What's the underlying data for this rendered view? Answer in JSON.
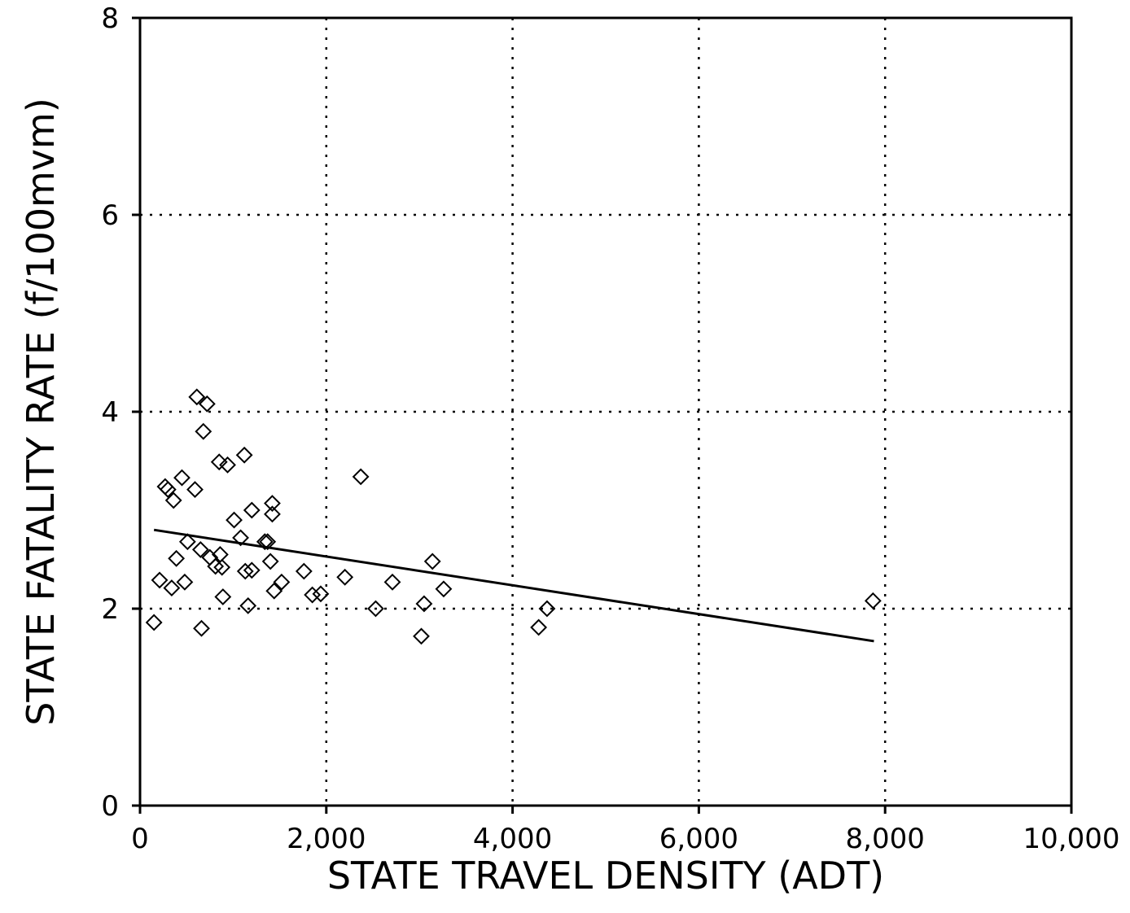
{
  "chart_data": {
    "type": "scatter",
    "xlabel": "STATE TRAVEL DENSITY (ADT)",
    "ylabel": "STATE FATALITY RATE (f/100mvm)",
    "xlim": [
      0,
      10000
    ],
    "ylim": [
      0,
      8
    ],
    "x_ticks": [
      0,
      2000,
      4000,
      6000,
      8000,
      10000
    ],
    "x_tick_labels": [
      "0",
      "2,000",
      "4,000",
      "6,000",
      "8,000",
      "10,000"
    ],
    "y_ticks": [
      0,
      2,
      4,
      6,
      8
    ],
    "y_tick_labels": [
      "0",
      "2",
      "4",
      "6",
      "8"
    ],
    "grid": true,
    "marker": "open-diamond",
    "points": [
      [
        150,
        1.86
      ],
      [
        210,
        2.29
      ],
      [
        270,
        3.24
      ],
      [
        300,
        3.21
      ],
      [
        340,
        2.21
      ],
      [
        360,
        3.1
      ],
      [
        390,
        2.51
      ],
      [
        450,
        3.33
      ],
      [
        480,
        2.27
      ],
      [
        510,
        2.68
      ],
      [
        590,
        3.21
      ],
      [
        610,
        4.15
      ],
      [
        650,
        2.6
      ],
      [
        660,
        1.8
      ],
      [
        680,
        3.8
      ],
      [
        720,
        4.08
      ],
      [
        750,
        2.52
      ],
      [
        810,
        2.43
      ],
      [
        850,
        3.49
      ],
      [
        860,
        2.55
      ],
      [
        880,
        2.42
      ],
      [
        890,
        2.12
      ],
      [
        940,
        3.46
      ],
      [
        1010,
        2.9
      ],
      [
        1080,
        2.72
      ],
      [
        1120,
        3.56
      ],
      [
        1130,
        2.38
      ],
      [
        1160,
        2.03
      ],
      [
        1200,
        2.39
      ],
      [
        1200,
        3.0
      ],
      [
        1340,
        2.68
      ],
      [
        1370,
        2.68
      ],
      [
        1400,
        2.48
      ],
      [
        1420,
        3.07
      ],
      [
        1420,
        2.96
      ],
      [
        1440,
        2.18
      ],
      [
        1520,
        2.27
      ],
      [
        1760,
        2.38
      ],
      [
        1850,
        2.14
      ],
      [
        1940,
        2.15
      ],
      [
        2200,
        2.32
      ],
      [
        2370,
        3.34
      ],
      [
        2530,
        2.0
      ],
      [
        2710,
        2.27
      ],
      [
        3020,
        1.72
      ],
      [
        3050,
        2.05
      ],
      [
        3140,
        2.48
      ],
      [
        3260,
        2.2
      ],
      [
        4280,
        1.81
      ],
      [
        4370,
        2.0
      ],
      [
        7870,
        2.08
      ]
    ],
    "trend_line": [
      [
        150,
        2.8
      ],
      [
        7880,
        1.67
      ]
    ]
  }
}
